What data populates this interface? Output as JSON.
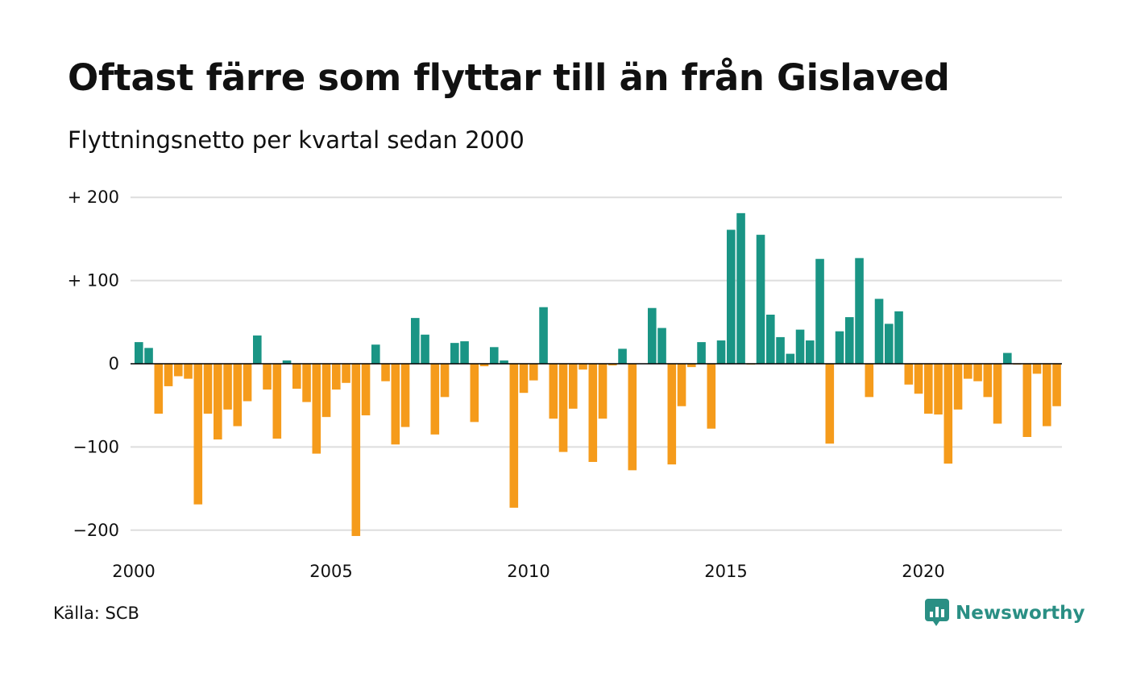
{
  "title": "Oftast färre som flyttar till än från Gislaved",
  "subtitle": "Flyttningsnetto per kvartal sedan 2000",
  "source": "Källa: SCB",
  "brand": {
    "name": "Newsworthy",
    "icon": "newsworthy-logo-icon",
    "color": "#2a8f84"
  },
  "colors": {
    "positive": "#1a9585",
    "negative": "#f59b1b",
    "grid": "#dddddd",
    "zero": "#000000"
  },
  "chart_data": {
    "type": "bar",
    "title": "Oftast färre som flyttar till än från Gislaved",
    "subtitle": "Flyttningsnetto per kvartal sedan 2000",
    "xlabel": "",
    "ylabel": "",
    "x_start": 2000,
    "x_ticks": [
      2000,
      2005,
      2010,
      2015,
      2020
    ],
    "x_tick_labels": [
      "2000",
      "2005",
      "2010",
      "2015",
      "2020"
    ],
    "y_ticks": [
      200,
      100,
      0,
      -100,
      -200
    ],
    "y_tick_labels": [
      "+ 200",
      "+ 100",
      "0",
      "−100",
      "−200"
    ],
    "ylim": [
      -225,
      225
    ],
    "grid": true,
    "legend": "none",
    "values": [
      26,
      19,
      -60,
      -27,
      -15,
      -18,
      -169,
      -60,
      -91,
      -55,
      -75,
      -45,
      34,
      -31,
      -90,
      4,
      -30,
      -46,
      -108,
      -64,
      -31,
      -23,
      -207,
      -62,
      23,
      -21,
      -97,
      -76,
      55,
      35,
      -85,
      -40,
      25,
      27,
      -70,
      -3,
      20,
      4,
      -173,
      -35,
      -20,
      68,
      -66,
      -106,
      -54,
      -7,
      -118,
      -66,
      -2,
      18,
      -128,
      0,
      67,
      43,
      -121,
      -51,
      -4,
      26,
      -78,
      28,
      161,
      181,
      -1,
      155,
      59,
      32,
      12,
      41,
      28,
      126,
      -96,
      39,
      56,
      127,
      -40,
      78,
      48,
      63,
      -25,
      -36,
      -60,
      -61,
      -120,
      -55,
      -18,
      -21,
      -40,
      -72,
      13,
      -1,
      -88,
      -12,
      -75,
      -51
    ]
  }
}
